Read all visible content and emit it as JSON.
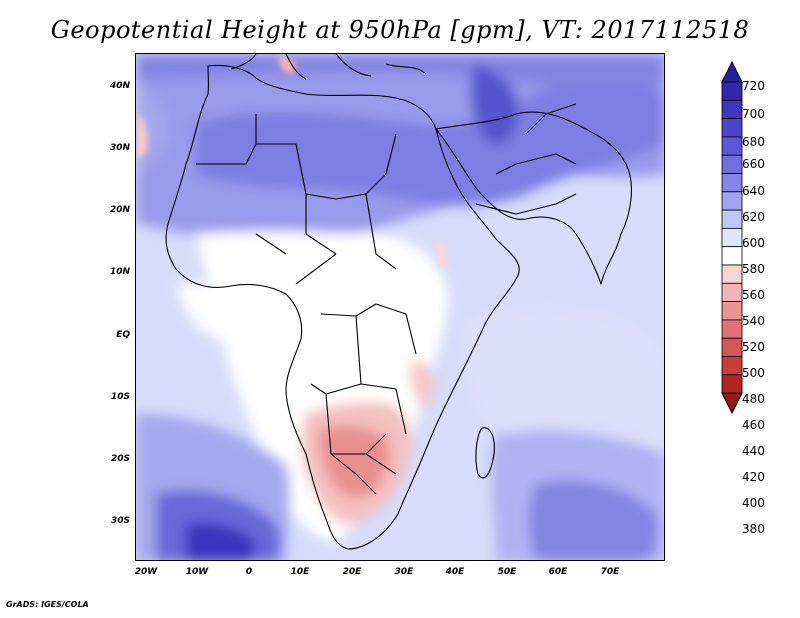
{
  "title": "Geopotential Height at 950hPa [gpm], VT: 2017112518",
  "footer": "GrADS: IGES/COLA",
  "map": {
    "lat_ticks": [
      "40N",
      "30N",
      "20N",
      "10N",
      "EQ",
      "10S",
      "20S",
      "30S"
    ],
    "lon_ticks": [
      "20W",
      "10W",
      "0",
      "10E",
      "20E",
      "30E",
      "40E",
      "50E",
      "60E",
      "70E"
    ]
  },
  "colorbar": {
    "levels": [
      "720",
      "700",
      "680",
      "660",
      "640",
      "620",
      "600",
      "580",
      "560",
      "540",
      "520",
      "500",
      "480",
      "460",
      "440",
      "420",
      "400",
      "380"
    ],
    "colors": [
      "#2a1f9e",
      "#3426b0",
      "#3f36c0",
      "#4a46cc",
      "#5a58d6",
      "#6e6ede",
      "#8686e6",
      "#a2a4ee",
      "#c2c6f6",
      "#e4e6fc",
      "#ffffff",
      "#f9d6d6",
      "#f2b4b4",
      "#ea9494",
      "#e07474",
      "#d65656",
      "#ca3c3c",
      "#b02424",
      "#961818"
    ]
  }
}
